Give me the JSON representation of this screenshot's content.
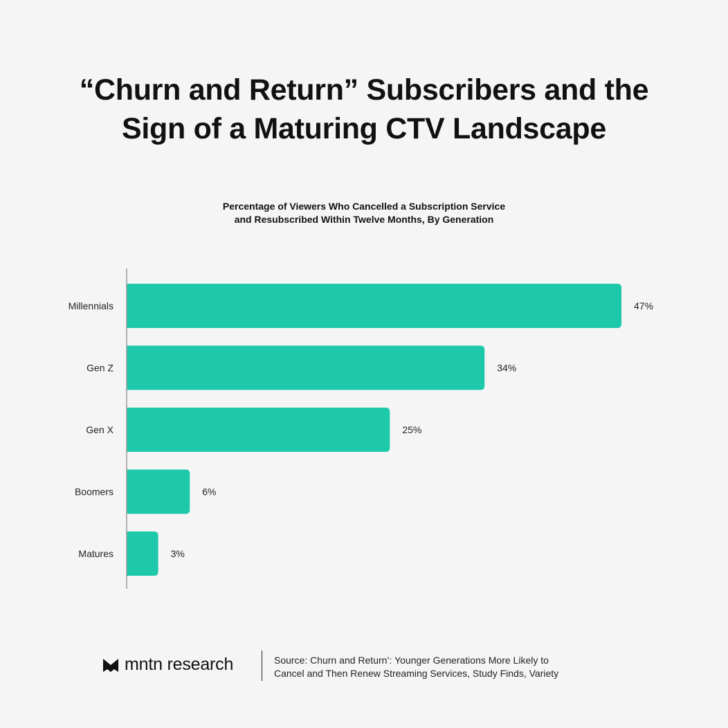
{
  "title_line1": "“Churn and Return” Subscribers and the",
  "title_line2": "Sign of a Maturing CTV Landscape",
  "chart_data": {
    "type": "bar",
    "orientation": "horizontal",
    "title": "Percentage of Viewers Who Cancelled a Subscription Service and Resubscribed Within Twelve Months, By Generation",
    "title_line1": "Percentage of Viewers Who Cancelled a Subscription Service",
    "title_line2": "and Resubscribed Within Twelve Months, By Generation",
    "categories": [
      "Millennials",
      "Gen Z",
      "Gen X",
      "Boomers",
      "Matures"
    ],
    "values": [
      47,
      34,
      25,
      6,
      3
    ],
    "value_labels": [
      "47%",
      "34%",
      "25%",
      "6%",
      "3%"
    ],
    "xlabel": "",
    "ylabel": "",
    "grid": false,
    "bar_color": "#1dc9aa"
  },
  "footer": {
    "logo_text": "mntn research",
    "source_line1": "Source: Churn and Return’: Younger Generations More Likely to",
    "source_line2": "Cancel and Then Renew Streaming Services, Study Finds, Variety"
  }
}
